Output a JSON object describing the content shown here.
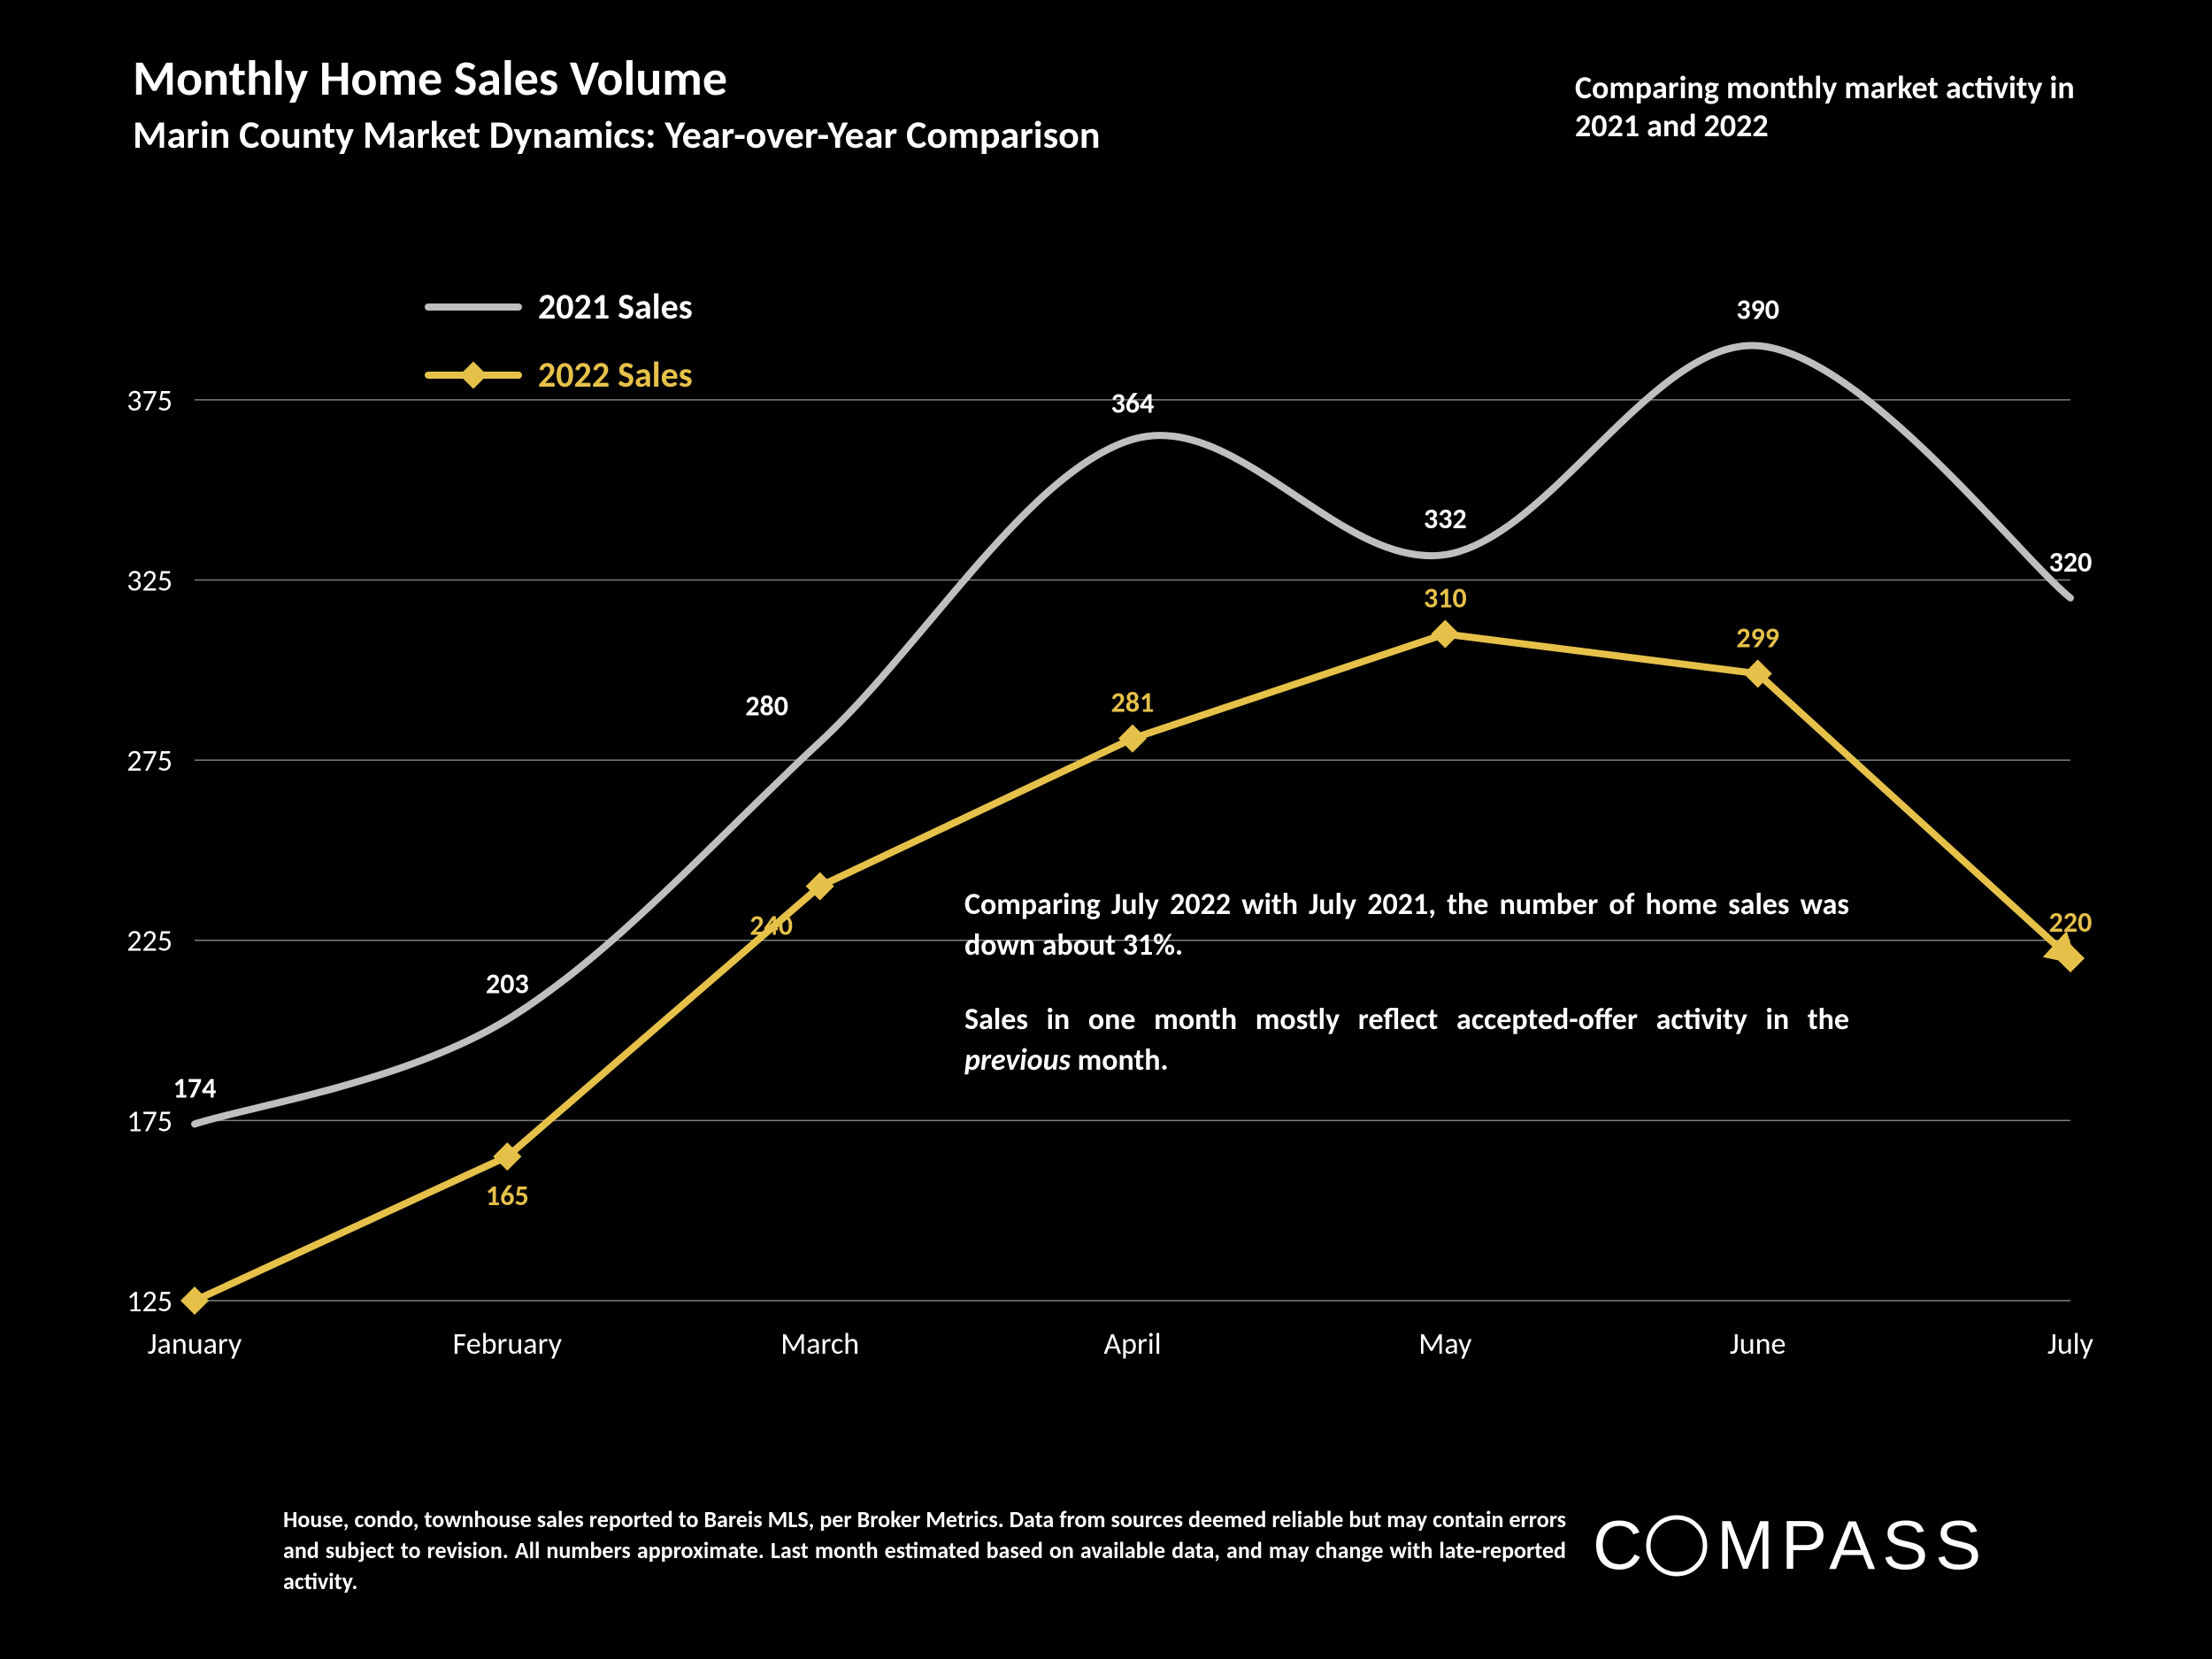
{
  "title": "Monthly Home Sales Volume",
  "subtitle": "Marin County Market Dynamics: Year-over-Year Comparison",
  "right_note": "Comparing monthly market activity in 2021 and 2022",
  "legend": {
    "series1": "2021 Sales",
    "series2": "2022 Sales"
  },
  "annotation": {
    "p1": "Comparing July 2022 with July 2021, the number of home sales was down about 31%.",
    "p2_pre": "Sales in one month mostly reflect accepted-offer activity in the ",
    "p2_em": "previous",
    "p2_post": " month."
  },
  "footnote": "House, condo, townhouse sales reported to Bareis MLS, per Broker Metrics. Data from sources deemed reliable but may contain errors and subject to revision. All numbers approximate. Last month estimated based on available data, and may change with late-reported activity.",
  "brand": "COMPASS",
  "chart": {
    "type": "line",
    "background_color": "#000000",
    "text_color": "#ffffff",
    "grid_color": "#808080",
    "categories": [
      "January",
      "February",
      "March",
      "April",
      "May",
      "June",
      "July"
    ],
    "ylim": [
      125,
      400
    ],
    "yticks": [
      125,
      175,
      225,
      275,
      325,
      375
    ],
    "axis_fontsize": 34,
    "label_fontsize": 32,
    "line_width": 8,
    "series": [
      {
        "name": "2021 Sales",
        "color": "#bfbfbf",
        "marker": "none",
        "smooth": true,
        "values": [
          174,
          203,
          280,
          364,
          332,
          390,
          320
        ],
        "label_color": "#ffffff",
        "label_positions": [
          "above",
          "above",
          "above-left",
          "above",
          "above",
          "above",
          "above"
        ]
      },
      {
        "name": "2022 Sales",
        "color": "#e6c14a",
        "marker": "diamond",
        "marker_size": 16,
        "smooth": false,
        "values": [
          125,
          165,
          240,
          281,
          310,
          299,
          220
        ],
        "label_color": "#e6c14a",
        "label_positions": [
          "none",
          "below",
          "below-left",
          "above",
          "above",
          "above",
          "above"
        ],
        "end_arrow": true
      }
    ]
  }
}
